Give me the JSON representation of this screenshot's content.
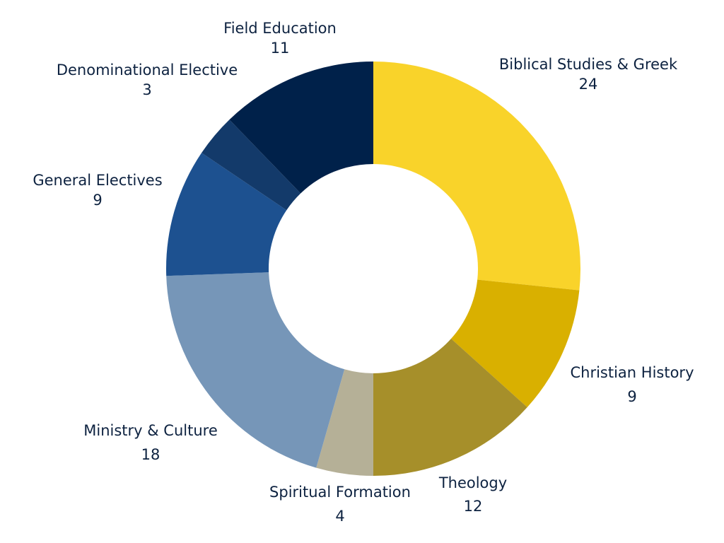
{
  "chart_data": {
    "type": "donut",
    "categories": [
      "Biblical Studies & Greek",
      "Christian History",
      "Theology",
      "Spiritual Formation",
      "Ministry & Culture",
      "General Electives",
      "Denominational Elective",
      "Field Education"
    ],
    "values": [
      24,
      9,
      12,
      4,
      18,
      9,
      3,
      11
    ],
    "colors": [
      "#f9d32a",
      "#d9b000",
      "#a68f2a",
      "#b5b097",
      "#7696b8",
      "#1d5190",
      "#133a6a",
      "#00214a"
    ]
  }
}
